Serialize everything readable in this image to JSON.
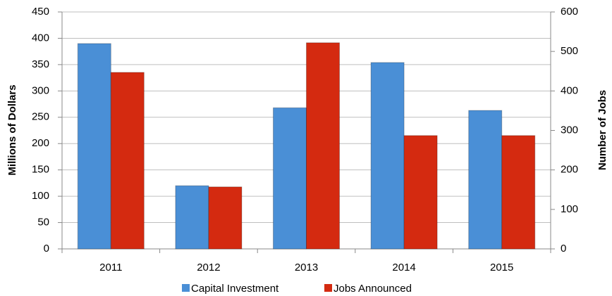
{
  "chart_data": {
    "type": "bar",
    "categories": [
      "2011",
      "2012",
      "2013",
      "2014",
      "2015"
    ],
    "series": [
      {
        "name": "Capital Investment",
        "color": "#4a8fd6",
        "values": [
          390,
          120,
          268,
          354,
          263
        ]
      },
      {
        "name": "Jobs Announced",
        "color": "#d42a10",
        "values": [
          447,
          157,
          522,
          287,
          287
        ],
        "axis": "y2"
      }
    ],
    "y_label": "Millions of Dollars",
    "y2_label": "Number of Jobs",
    "ylim": [
      0,
      450
    ],
    "yticks": [
      0,
      50,
      100,
      150,
      200,
      250,
      300,
      350,
      400,
      450
    ],
    "y2lim": [
      0,
      600
    ],
    "y2ticks": [
      0,
      100,
      200,
      300,
      400,
      500,
      600
    ],
    "grid": true,
    "legend": "bottom"
  }
}
